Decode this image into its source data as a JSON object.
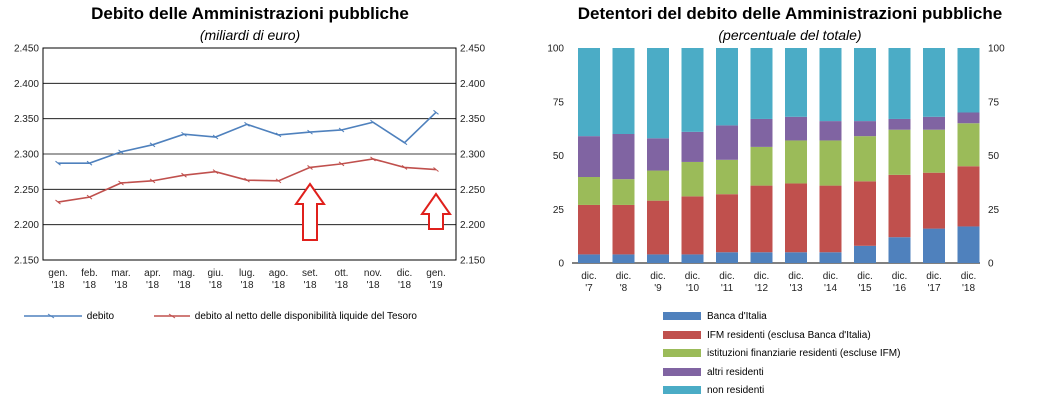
{
  "left_chart": {
    "title": "Debito delle Amministrazioni pubbliche",
    "subtitle": "(miliardi di euro)"
  },
  "right_chart": {
    "title": "Detentori del debito delle Amministrazioni pubbliche",
    "subtitle": "(percentuale del totale)"
  },
  "chart_data": [
    {
      "type": "line",
      "title": "Debito delle Amministrazioni pubbliche",
      "subtitle": "(miliardi di euro)",
      "categories": [
        "gen. '18",
        "feb. '18",
        "mar. '18",
        "apr. '18",
        "mag. '18",
        "giu. '18",
        "lug. '18",
        "ago. '18",
        "set. '18",
        "ott. '18",
        "nov. '18",
        "dic. '18",
        "gen. '19"
      ],
      "category_lines": [
        [
          "gen.",
          "'18"
        ],
        [
          "feb.",
          "'18"
        ],
        [
          "mar.",
          "'18"
        ],
        [
          "apr.",
          "'18"
        ],
        [
          "mag.",
          "'18"
        ],
        [
          "giu.",
          "'18"
        ],
        [
          "lug.",
          "'18"
        ],
        [
          "ago.",
          "'18"
        ],
        [
          "set.",
          "'18"
        ],
        [
          "ott.",
          "'18"
        ],
        [
          "nov.",
          "'18"
        ],
        [
          "dic.",
          "'18"
        ],
        [
          "gen.",
          "'19"
        ]
      ],
      "y_ticks": [
        "2.150",
        "2.200",
        "2.250",
        "2.300",
        "2.350",
        "2.400",
        "2.450"
      ],
      "ylim": [
        2150,
        2450
      ],
      "grid": true,
      "legend_position": "bottom",
      "series": [
        {
          "name": "debito",
          "color": "#4f81bd",
          "values": [
            2287,
            2287,
            2303,
            2313,
            2328,
            2324,
            2342,
            2327,
            2331,
            2334,
            2345,
            2316,
            2359
          ]
        },
        {
          "name": "debito al netto delle disponibilità liquide del Tesoro",
          "color": "#c0504d",
          "values": [
            2232,
            2239,
            2259,
            2262,
            2270,
            2275,
            2263,
            2262,
            2281,
            2286,
            2293,
            2281,
            2278
          ]
        }
      ],
      "annotations": [
        {
          "type": "up-arrow",
          "category": "set. '18",
          "color": "#e0201c"
        },
        {
          "type": "up-arrow",
          "category": "gen. '19",
          "color": "#e0201c"
        }
      ]
    },
    {
      "type": "bar",
      "stacked": true,
      "title": "Detentori del debito delle Amministrazioni pubbliche",
      "subtitle": "(percentuale del totale)",
      "categories": [
        "dic. '7",
        "dic. '8",
        "dic. '9",
        "dic. '10",
        "dic. '11",
        "dic. '12",
        "dic. '13",
        "dic. '14",
        "dic. '15",
        "dic. '16",
        "dic. '17",
        "dic. '18"
      ],
      "category_lines": [
        [
          "dic.",
          "'7"
        ],
        [
          "dic.",
          "'8"
        ],
        [
          "dic.",
          "'9"
        ],
        [
          "dic.",
          "'10"
        ],
        [
          "dic.",
          "'11"
        ],
        [
          "dic.",
          "'12"
        ],
        [
          "dic.",
          "'13"
        ],
        [
          "dic.",
          "'14"
        ],
        [
          "dic.",
          "'15"
        ],
        [
          "dic.",
          "'16"
        ],
        [
          "dic.",
          "'17"
        ],
        [
          "dic.",
          "'18"
        ]
      ],
      "y_ticks": [
        "0",
        "25",
        "50",
        "75",
        "100"
      ],
      "ylim": [
        0,
        100
      ],
      "grid": false,
      "legend_position": "bottom",
      "series": [
        {
          "name": "Banca d'Italia",
          "color": "#4f81bd",
          "values": [
            4,
            4,
            4,
            4,
            5,
            5,
            5,
            5,
            8,
            12,
            16,
            17
          ]
        },
        {
          "name": "IFM residenti (esclusa Banca d'Italia)",
          "color": "#c0504d",
          "values": [
            23,
            23,
            25,
            27,
            27,
            31,
            32,
            31,
            30,
            29,
            26,
            28
          ]
        },
        {
          "name": "istituzioni finanziarie residenti (escluse IFM)",
          "color": "#9bbb59",
          "values": [
            13,
            12,
            14,
            16,
            16,
            18,
            20,
            21,
            21,
            21,
            20,
            20
          ]
        },
        {
          "name": "altri residenti",
          "color": "#8064a2",
          "values": [
            19,
            21,
            15,
            14,
            16,
            13,
            11,
            9,
            7,
            5,
            6,
            5
          ]
        },
        {
          "name": "non residenti",
          "color": "#4bacc6",
          "values": [
            41,
            40,
            42,
            39,
            36,
            33,
            32,
            34,
            34,
            33,
            32,
            30
          ]
        }
      ]
    }
  ]
}
